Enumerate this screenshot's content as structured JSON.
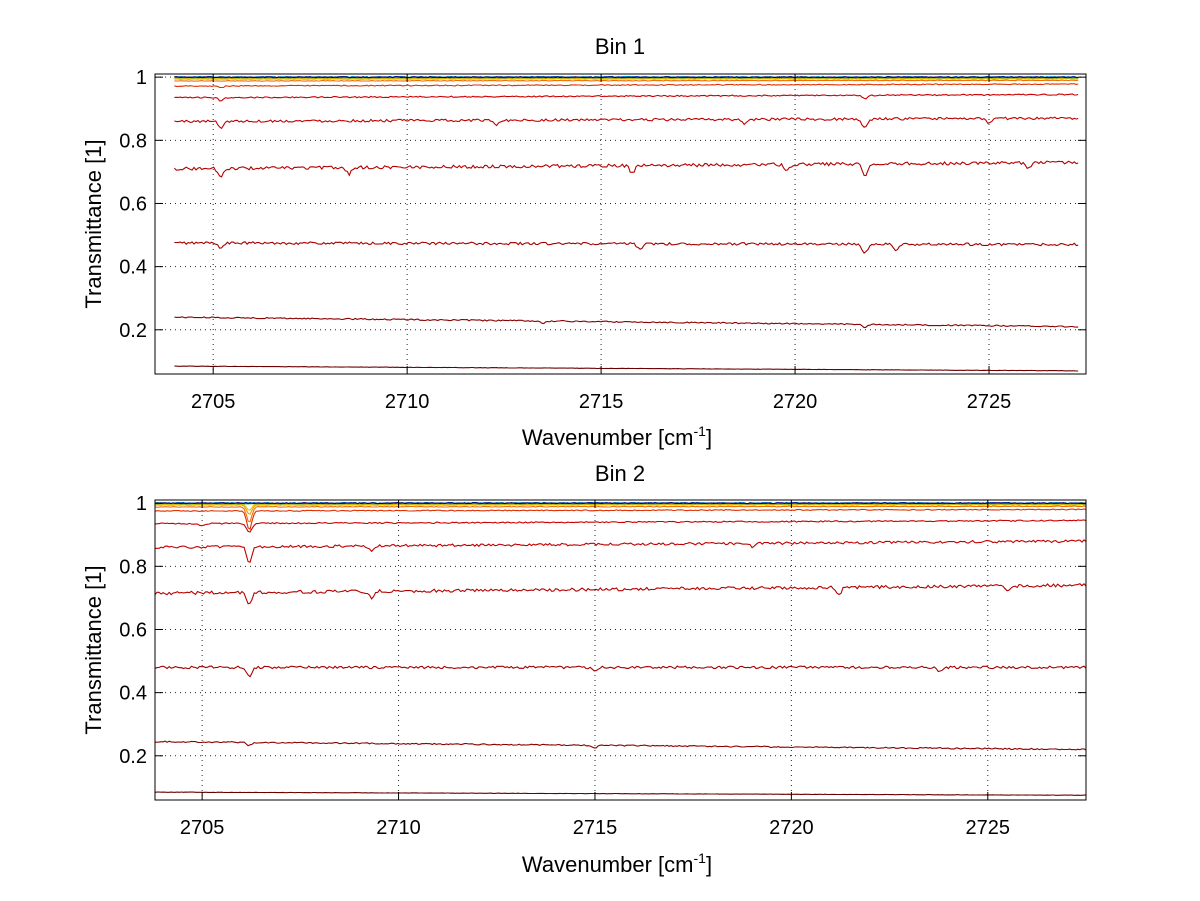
{
  "chart_data": [
    {
      "type": "line",
      "title": "Bin 1",
      "xlabel_main": "Wavenumber [cm",
      "xlabel_sup": "-1",
      "xlabel_tail": "]",
      "ylabel": "Transmittance [1]",
      "xlim": [
        2703.5,
        2727.5
      ],
      "ylim": [
        0.06,
        1.01
      ],
      "xticks": [
        "2705",
        "2710",
        "2715",
        "2720",
        "2725"
      ],
      "yticks": [
        "0.2",
        "0.4",
        "0.6",
        "0.8",
        "1"
      ],
      "grid": true,
      "x_start": 2704.0,
      "x_end": 2727.3,
      "series": [
        {
          "start": 0.085,
          "end": 0.07,
          "color": "#6b0000",
          "dips": [],
          "noise": 0.0005
        },
        {
          "start": 0.24,
          "end": 0.21,
          "color": "#8b0000",
          "dips": [
            [
              2713.5,
              0.008
            ],
            [
              2721.8,
              0.01
            ]
          ],
          "noise": 0.002
        },
        {
          "start": 0.475,
          "end": 0.47,
          "color": "#a50000",
          "dips": [
            [
              2705.2,
              0.015
            ],
            [
              2716.0,
              0.02
            ],
            [
              2721.8,
              0.03
            ],
            [
              2722.6,
              0.02
            ]
          ],
          "noise": 0.004
        },
        {
          "start": 0.71,
          "end": 0.73,
          "color": "#b40000",
          "dips": [
            [
              2705.2,
              0.03
            ],
            [
              2708.5,
              0.02
            ],
            [
              2715.8,
              0.025
            ],
            [
              2719.8,
              0.02
            ],
            [
              2721.8,
              0.04
            ],
            [
              2726.0,
              0.02
            ]
          ],
          "noise": 0.005
        },
        {
          "start": 0.86,
          "end": 0.87,
          "color": "#c00000",
          "dips": [
            [
              2705.2,
              0.02
            ],
            [
              2712.3,
              0.015
            ],
            [
              2718.7,
              0.015
            ],
            [
              2721.8,
              0.03
            ],
            [
              2725.0,
              0.015
            ]
          ],
          "noise": 0.004
        },
        {
          "start": 0.935,
          "end": 0.945,
          "color": "#cc0000",
          "dips": [
            [
              2705.2,
              0.01
            ],
            [
              2721.8,
              0.012
            ]
          ],
          "noise": 0.002
        },
        {
          "start": 0.972,
          "end": 0.978,
          "color": "#e03000",
          "dips": [
            [
              2705.2,
              0.006
            ]
          ],
          "noise": 0.0015
        },
        {
          "start": 0.988,
          "end": 0.99,
          "color": "#f07000",
          "dips": [],
          "noise": 0.001
        },
        {
          "start": 0.994,
          "end": 0.995,
          "color": "#f0a000",
          "dips": [],
          "noise": 0.0008
        },
        {
          "start": 0.997,
          "end": 0.997,
          "color": "#e6c800",
          "dips": [],
          "noise": 0.0008
        },
        {
          "start": 0.998,
          "end": 0.998,
          "color": "#a0c800",
          "dips": [],
          "noise": 0.0008
        },
        {
          "start": 0.999,
          "end": 0.999,
          "color": "#40c080",
          "dips": [],
          "noise": 0.0015
        },
        {
          "start": 1.0,
          "end": 1.0,
          "color": "#00b0e0",
          "dips": [],
          "noise": 0.002
        },
        {
          "start": 1.0,
          "end": 1.0,
          "color": "#0060c0",
          "dips": [],
          "noise": 0.002
        },
        {
          "start": 1.0,
          "end": 1.0,
          "color": "#000080",
          "dips": [],
          "noise": 0.0015
        }
      ]
    },
    {
      "type": "line",
      "title": "Bin 2",
      "xlabel_main": "Wavenumber [cm",
      "xlabel_sup": "-1",
      "xlabel_tail": "]",
      "ylabel": "Transmittance [1]",
      "xlim": [
        2703.8,
        2727.5
      ],
      "ylim": [
        0.06,
        1.01
      ],
      "xticks": [
        "2705",
        "2710",
        "2715",
        "2720",
        "2725"
      ],
      "yticks": [
        "0.2",
        "0.4",
        "0.6",
        "0.8",
        "1"
      ],
      "grid": true,
      "x_start": 2703.8,
      "x_end": 2727.5,
      "series": [
        {
          "start": 0.085,
          "end": 0.075,
          "color": "#6b0000",
          "dips": [],
          "noise": 0.0005
        },
        {
          "start": 0.245,
          "end": 0.22,
          "color": "#8b0000",
          "dips": [
            [
              2706.2,
              0.01
            ],
            [
              2715.0,
              0.008
            ]
          ],
          "noise": 0.002
        },
        {
          "start": 0.48,
          "end": 0.48,
          "color": "#a50000",
          "dips": [
            [
              2706.2,
              0.03
            ],
            [
              2715.0,
              0.015
            ],
            [
              2723.8,
              0.015
            ]
          ],
          "noise": 0.004
        },
        {
          "start": 0.715,
          "end": 0.74,
          "color": "#b40000",
          "dips": [
            [
              2706.2,
              0.04
            ],
            [
              2709.3,
              0.02
            ],
            [
              2721.2,
              0.025
            ],
            [
              2725.5,
              0.02
            ]
          ],
          "noise": 0.005
        },
        {
          "start": 0.86,
          "end": 0.88,
          "color": "#c00000",
          "dips": [
            [
              2706.2,
              0.05
            ],
            [
              2709.3,
              0.015
            ],
            [
              2719.0,
              0.01
            ]
          ],
          "noise": 0.004
        },
        {
          "start": 0.935,
          "end": 0.945,
          "color": "#cc0000",
          "dips": [
            [
              2705.0,
              0.008
            ],
            [
              2706.2,
              0.03
            ]
          ],
          "noise": 0.002
        },
        {
          "start": 0.975,
          "end": 0.98,
          "color": "#e03000",
          "dips": [
            [
              2706.2,
              0.06
            ]
          ],
          "noise": 0.0015
        },
        {
          "start": 0.988,
          "end": 0.99,
          "color": "#f07000",
          "dips": [
            [
              2706.2,
              0.05
            ]
          ],
          "noise": 0.001
        },
        {
          "start": 0.994,
          "end": 0.995,
          "color": "#f0a000",
          "dips": [
            [
              2706.2,
              0.03
            ]
          ],
          "noise": 0.0008
        },
        {
          "start": 0.997,
          "end": 0.997,
          "color": "#e6c800",
          "dips": [
            [
              2706.2,
              0.02
            ]
          ],
          "noise": 0.0008
        },
        {
          "start": 0.998,
          "end": 0.998,
          "color": "#a0c800",
          "dips": [],
          "noise": 0.0008
        },
        {
          "start": 0.999,
          "end": 0.999,
          "color": "#40c080",
          "dips": [],
          "noise": 0.0015
        },
        {
          "start": 1.0,
          "end": 1.0,
          "color": "#00b0e0",
          "dips": [],
          "noise": 0.002
        },
        {
          "start": 1.0,
          "end": 1.0,
          "color": "#0060c0",
          "dips": [],
          "noise": 0.002
        },
        {
          "start": 1.0,
          "end": 1.0,
          "color": "#000080",
          "dips": [],
          "noise": 0.0015
        }
      ]
    }
  ]
}
